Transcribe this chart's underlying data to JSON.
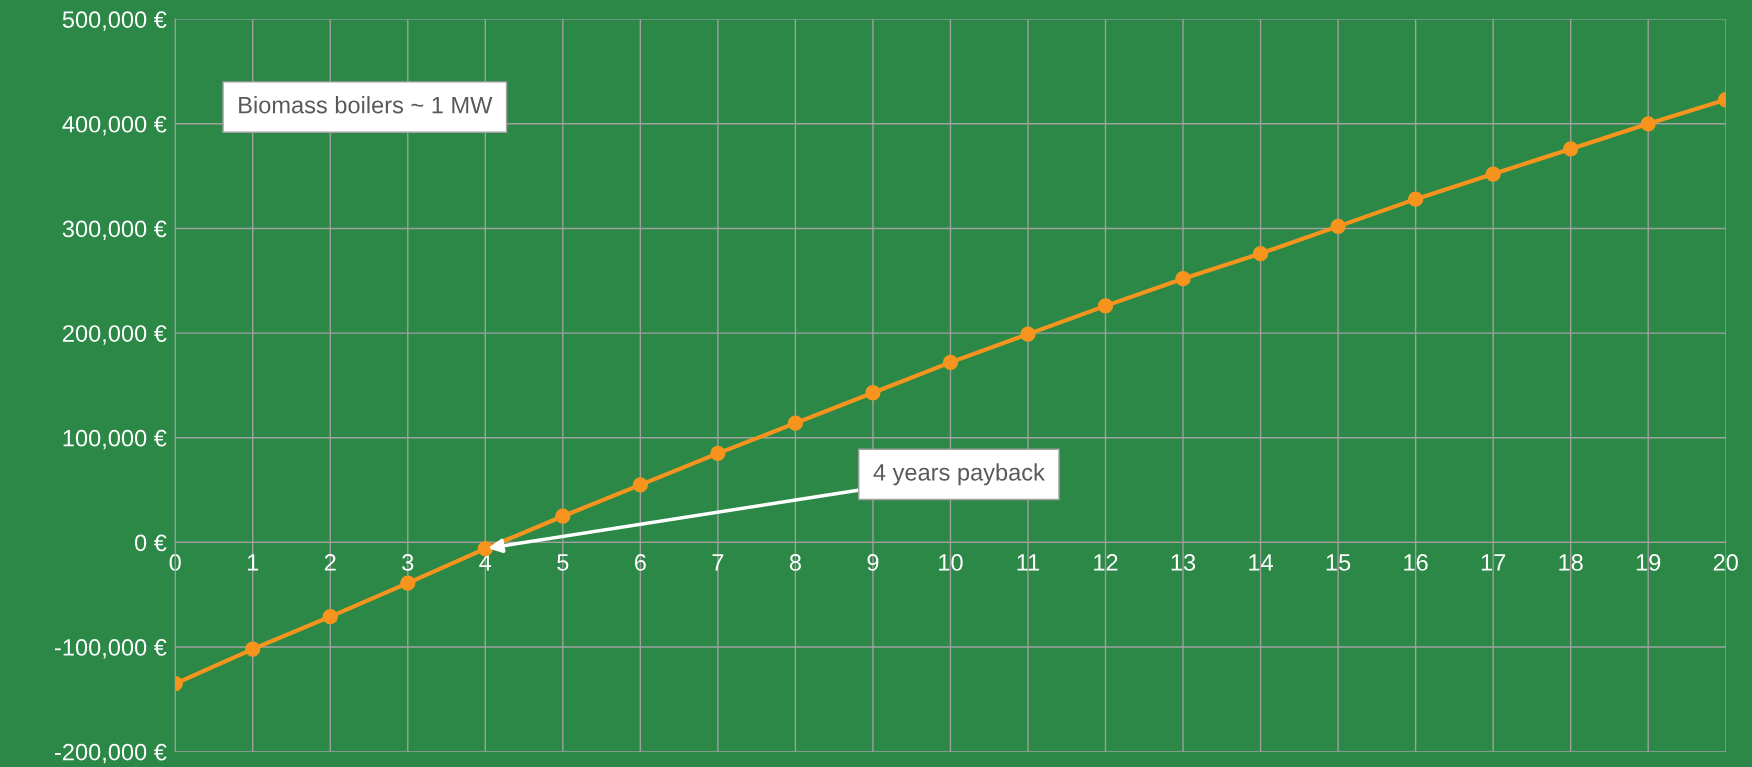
{
  "chart_data": {
    "type": "line",
    "x": [
      0,
      1,
      2,
      3,
      4,
      5,
      6,
      7,
      8,
      9,
      10,
      11,
      12,
      13,
      14,
      15,
      16,
      17,
      18,
      19,
      20
    ],
    "series": [
      {
        "color": "#f7941d",
        "values": [
          -135000,
          -102000,
          -71000,
          -39000,
          -6000,
          25000,
          55000,
          85000,
          114000,
          143000,
          172000,
          199000,
          226000,
          252000,
          276000,
          302000,
          328000,
          352000,
          376000,
          400000,
          423000
        ]
      }
    ],
    "xlim": [
      0,
      20
    ],
    "xticks": [
      0,
      1,
      2,
      3,
      4,
      5,
      6,
      7,
      8,
      9,
      10,
      11,
      12,
      13,
      14,
      15,
      16,
      17,
      18,
      19,
      20
    ],
    "ylim": [
      -200000,
      500000
    ],
    "yticks": [
      {
        "value": -200000,
        "label": "-200,000 €"
      },
      {
        "value": -100000,
        "label": "-100,000 €"
      },
      {
        "value": 0,
        "label": "0 €"
      },
      {
        "value": 100000,
        "label": "100,000 €"
      },
      {
        "value": 200000,
        "label": "200,000 €"
      },
      {
        "value": 300000,
        "label": "300,000 €"
      },
      {
        "value": 400000,
        "label": "400,000 €"
      },
      {
        "value": 500000,
        "label": "500,000 €"
      }
    ],
    "grid": true,
    "marker": "circle",
    "line_style": "solid",
    "annotations": [
      "Biomass boilers ~ 1 MW",
      {
        "text": "4 years payback",
        "x": 4,
        "y": -6000
      }
    ]
  }
}
